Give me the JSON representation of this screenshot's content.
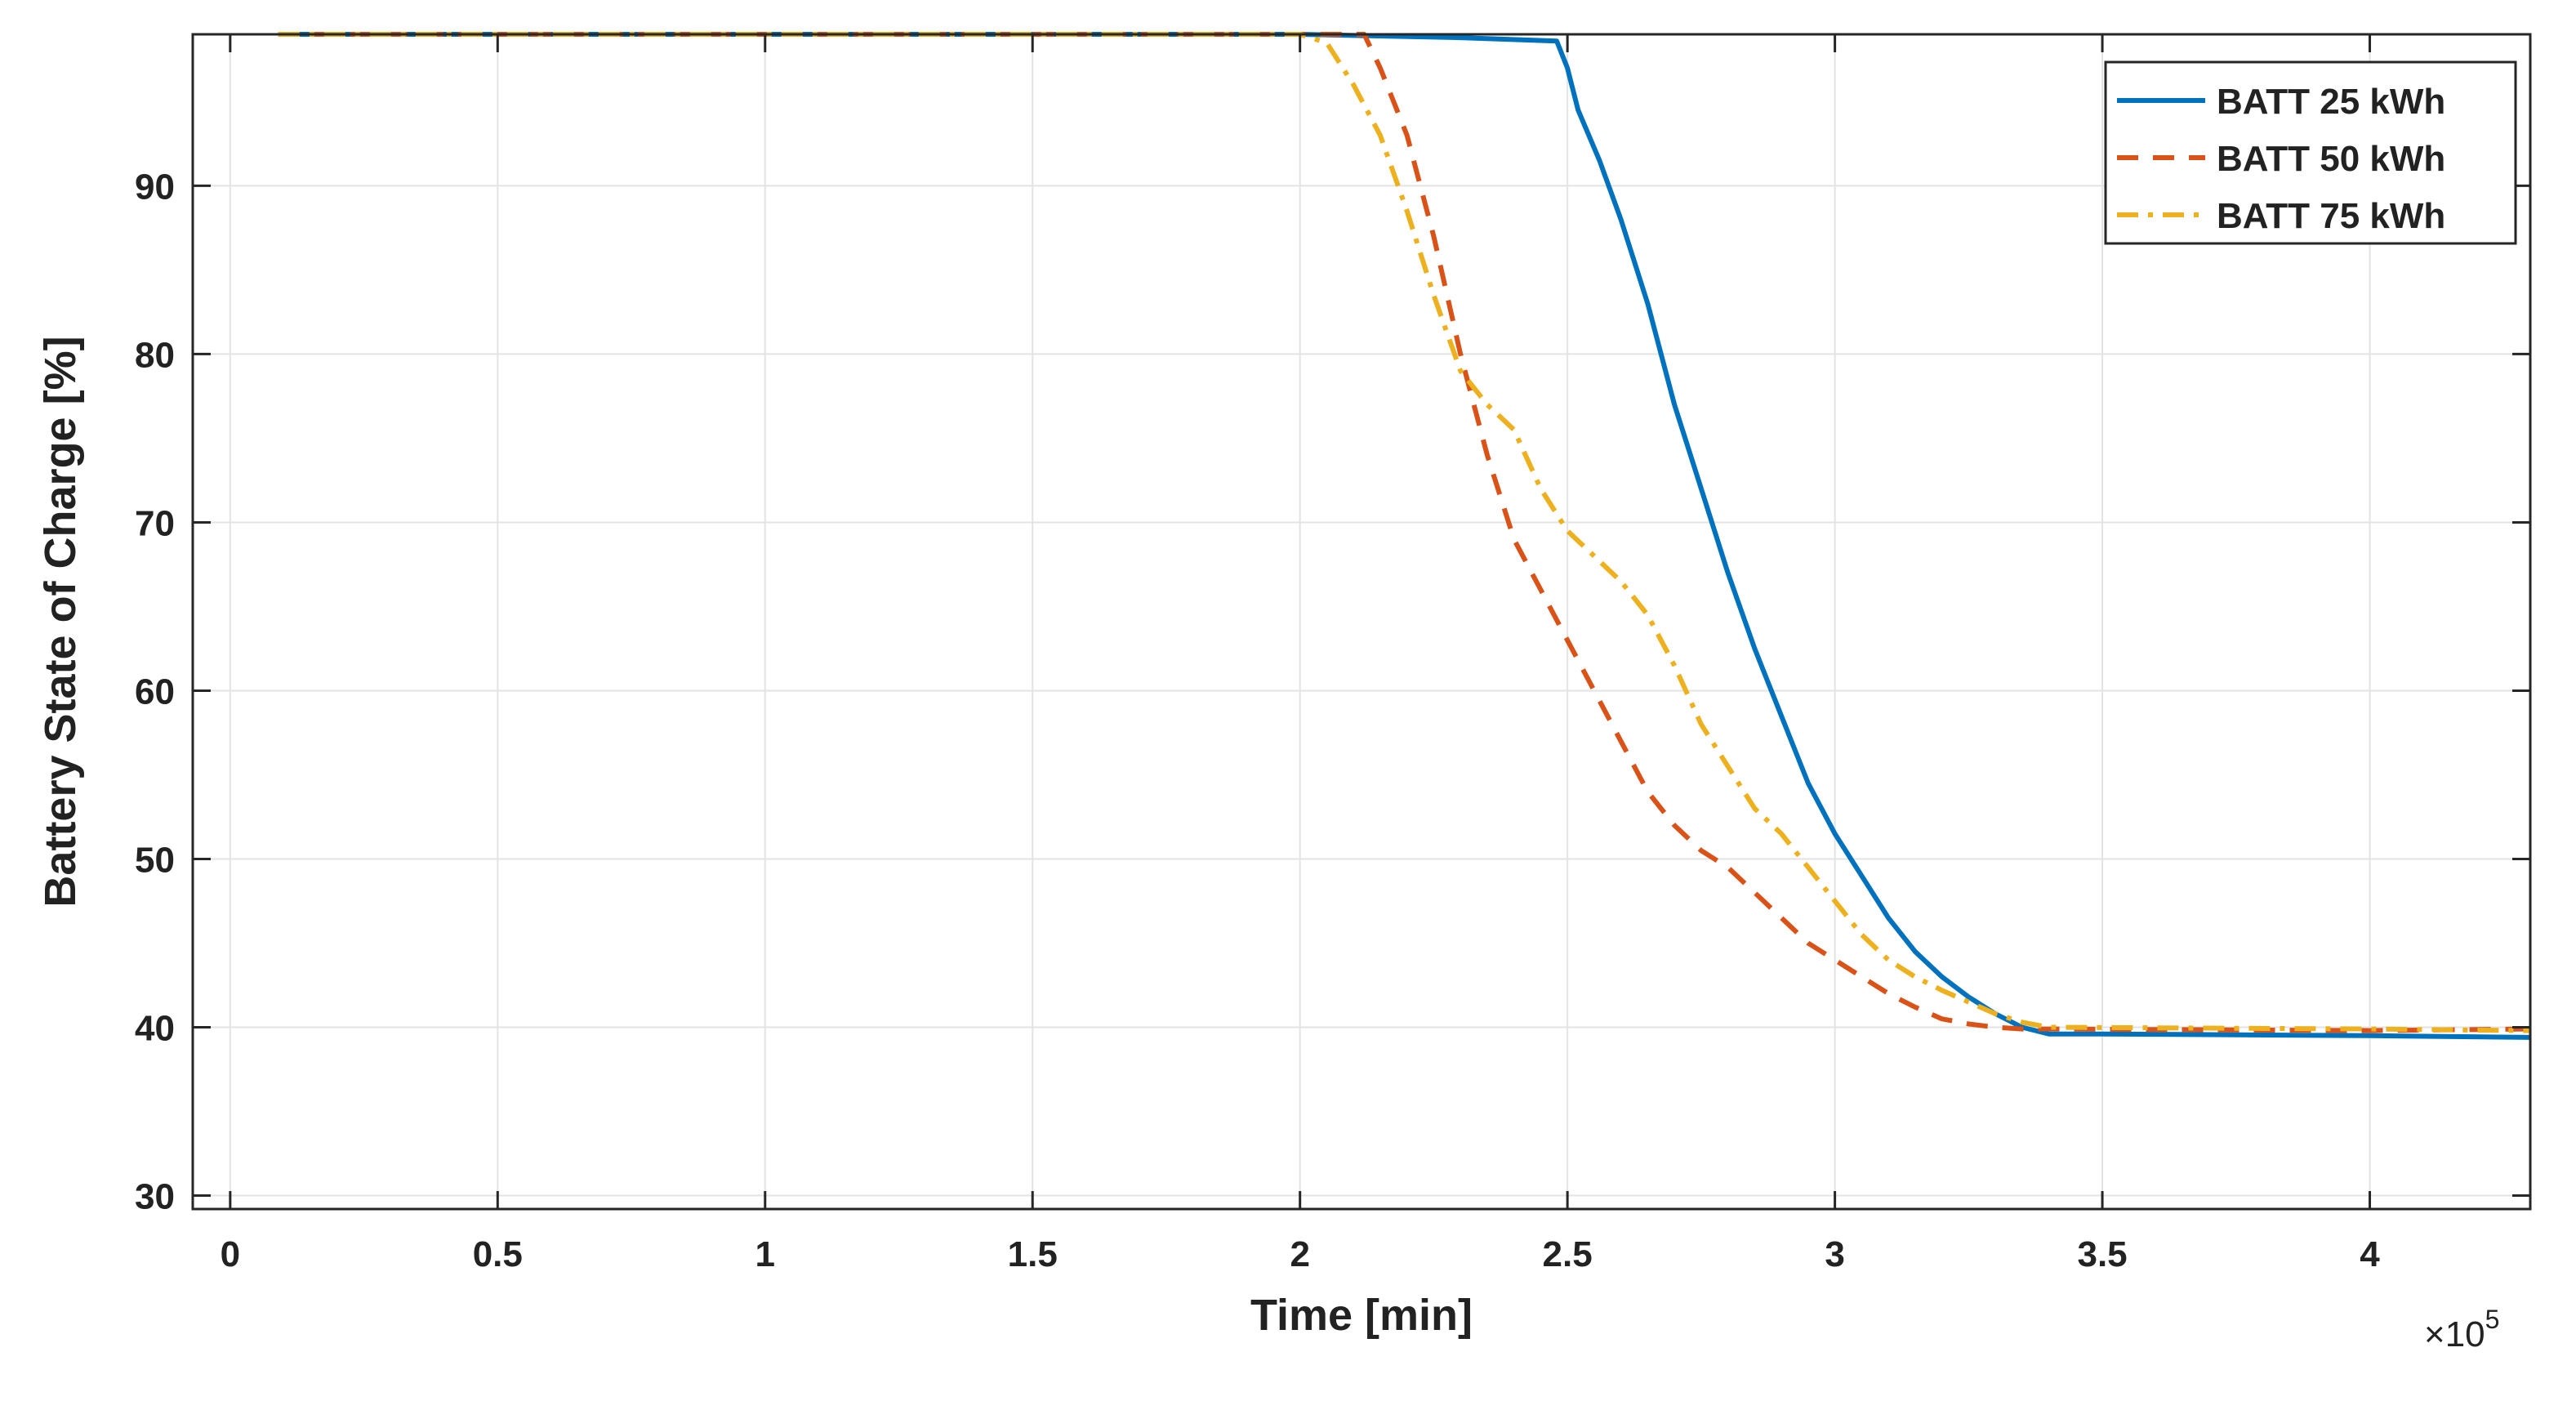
{
  "chart_data": {
    "type": "line",
    "title": "",
    "xlabel": "Time [min]",
    "ylabel": "Battery State of Charge [%]",
    "x_exponent_label": "×10",
    "x_exponent_power": "5",
    "xlim": [
      -0.07,
      4.3
    ],
    "ylim": [
      29.2,
      99
    ],
    "x_ticks": [
      0,
      0.5,
      1,
      1.5,
      2,
      2.5,
      3,
      3.5,
      4
    ],
    "x_tick_labels": [
      "0",
      "0.5",
      "1",
      "1.5",
      "2",
      "2.5",
      "3",
      "3.5",
      "4"
    ],
    "y_ticks": [
      30,
      40,
      50,
      60,
      70,
      80,
      90
    ],
    "y_tick_labels": [
      "30",
      "40",
      "50",
      "60",
      "70",
      "80",
      "90"
    ],
    "grid": true,
    "legend_position": "top-right",
    "series": [
      {
        "name": "BATT 25 kWh",
        "color": "#0072BD",
        "style": "solid",
        "x": [
          0.09,
          1.0,
          2.0,
          2.3,
          2.48,
          2.5,
          2.52,
          2.56,
          2.6,
          2.65,
          2.7,
          2.75,
          2.8,
          2.85,
          2.9,
          2.95,
          3.0,
          3.05,
          3.1,
          3.15,
          3.2,
          3.25,
          3.3,
          3.35,
          3.4,
          3.5,
          4.0,
          4.3
        ],
        "y": [
          99.0,
          99.0,
          99.0,
          98.8,
          98.6,
          97.0,
          94.5,
          91.5,
          88.0,
          83.0,
          77.0,
          72.0,
          67.0,
          62.5,
          58.5,
          54.5,
          51.5,
          49.0,
          46.5,
          44.5,
          43.0,
          41.8,
          40.8,
          40.0,
          39.6,
          39.6,
          39.5,
          39.4
        ]
      },
      {
        "name": "BATT 50 kWh",
        "color": "#D95319",
        "style": "dashed",
        "x": [
          0.09,
          1.0,
          2.0,
          2.12,
          2.15,
          2.2,
          2.25,
          2.3,
          2.35,
          2.4,
          2.45,
          2.5,
          2.55,
          2.6,
          2.65,
          2.7,
          2.75,
          2.8,
          2.85,
          2.9,
          2.95,
          3.0,
          3.05,
          3.1,
          3.15,
          3.2,
          3.25,
          3.3,
          3.35,
          3.4,
          4.0,
          4.3
        ],
        "y": [
          99.0,
          99.0,
          99.0,
          99.0,
          97.0,
          93.0,
          87.0,
          80.0,
          74.0,
          69.0,
          66.0,
          63.0,
          60.0,
          57.0,
          54.0,
          52.0,
          50.5,
          49.5,
          48.0,
          46.5,
          45.0,
          44.0,
          43.0,
          42.0,
          41.2,
          40.5,
          40.2,
          40.0,
          39.9,
          39.9,
          39.8,
          39.9
        ]
      },
      {
        "name": "BATT 75 kWh",
        "color": "#EDB120",
        "style": "dashdot",
        "x": [
          0.09,
          1.0,
          2.0,
          2.05,
          2.1,
          2.15,
          2.2,
          2.25,
          2.3,
          2.35,
          2.4,
          2.45,
          2.5,
          2.55,
          2.6,
          2.65,
          2.7,
          2.75,
          2.8,
          2.85,
          2.9,
          2.95,
          3.0,
          3.05,
          3.1,
          3.15,
          3.2,
          3.25,
          3.3,
          3.35,
          3.4,
          4.0,
          4.3
        ],
        "y": [
          99.0,
          99.0,
          99.0,
          98.5,
          96.0,
          93.0,
          88.5,
          83.5,
          79.0,
          77.0,
          75.5,
          72.0,
          69.5,
          68.0,
          66.5,
          64.5,
          61.5,
          58.0,
          55.5,
          53.0,
          51.5,
          49.5,
          47.5,
          45.5,
          44.0,
          43.0,
          42.2,
          41.5,
          40.8,
          40.3,
          40.0,
          39.9,
          39.8
        ]
      }
    ]
  }
}
